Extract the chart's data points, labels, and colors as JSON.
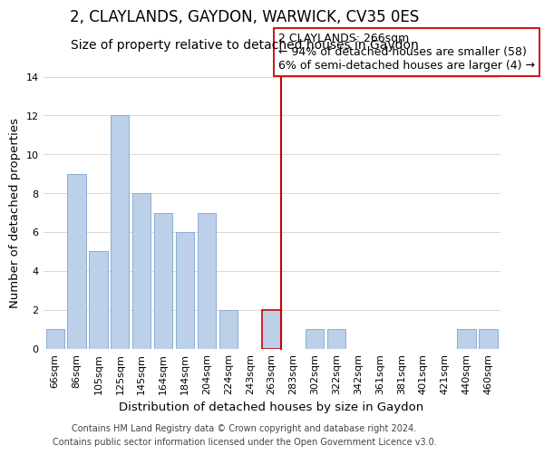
{
  "title": "2, CLAYLANDS, GAYDON, WARWICK, CV35 0ES",
  "subtitle": "Size of property relative to detached houses in Gaydon",
  "xlabel": "Distribution of detached houses by size in Gaydon",
  "ylabel": "Number of detached properties",
  "footer_line1": "Contains HM Land Registry data © Crown copyright and database right 2024.",
  "footer_line2": "Contains public sector information licensed under the Open Government Licence v3.0.",
  "bar_labels": [
    "66sqm",
    "86sqm",
    "105sqm",
    "125sqm",
    "145sqm",
    "164sqm",
    "184sqm",
    "204sqm",
    "224sqm",
    "243sqm",
    "263sqm",
    "283sqm",
    "302sqm",
    "322sqm",
    "342sqm",
    "361sqm",
    "381sqm",
    "401sqm",
    "421sqm",
    "440sqm",
    "460sqm"
  ],
  "bar_values": [
    1,
    9,
    5,
    12,
    8,
    7,
    6,
    7,
    2,
    0,
    2,
    0,
    1,
    1,
    0,
    0,
    0,
    0,
    0,
    1,
    1
  ],
  "bar_color": "#bdd0e9",
  "bar_edge_color": "#8aaed4",
  "highlight_bar_index": 10,
  "highlight_bar_edge_color": "#cc0000",
  "vline_color": "#cc0000",
  "ylim": [
    0,
    14
  ],
  "yticks": [
    0,
    2,
    4,
    6,
    8,
    10,
    12,
    14
  ],
  "annotation_box_text": "2 CLAYLANDS: 266sqm\n← 94% of detached houses are smaller (58)\n6% of semi-detached houses are larger (4) →",
  "annotation_box_fc": "#ffffff",
  "annotation_box_ec": "#cc0000",
  "grid_color": "#d8d8d8",
  "title_fontsize": 12,
  "subtitle_fontsize": 10,
  "axis_label_fontsize": 9.5,
  "tick_fontsize": 8,
  "annotation_fontsize": 9,
  "footer_fontsize": 7
}
